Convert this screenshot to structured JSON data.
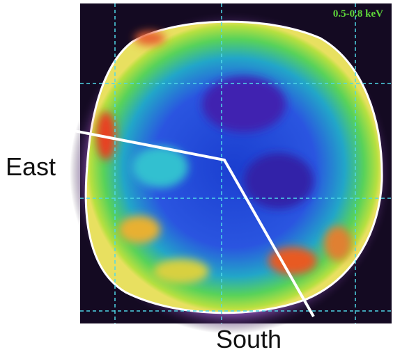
{
  "image": {
    "band_label": "0.5-0.8 keV"
  },
  "labels": {
    "east": "East",
    "south": "South"
  }
}
